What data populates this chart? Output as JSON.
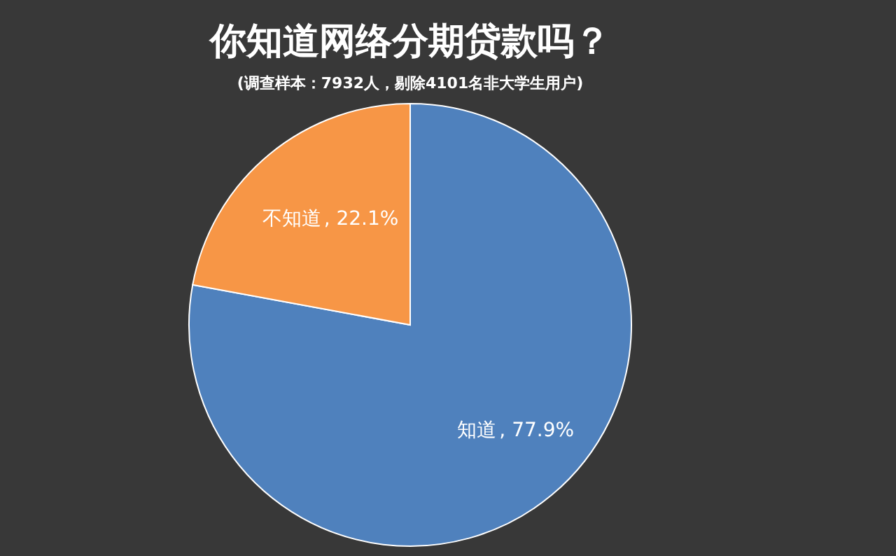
{
  "chart_data": {
    "type": "pie",
    "title": "你知道网络分期贷款吗？",
    "subtitle": "(调查样本：7932人，剔除4101名非大学生用户)",
    "categories": [
      "知道",
      "不知道"
    ],
    "values": [
      77.9,
      22.1
    ],
    "colors": [
      "#4f81bd",
      "#f79646"
    ],
    "value_labels": [
      ", 77.9%",
      ", 22.1%"
    ]
  }
}
